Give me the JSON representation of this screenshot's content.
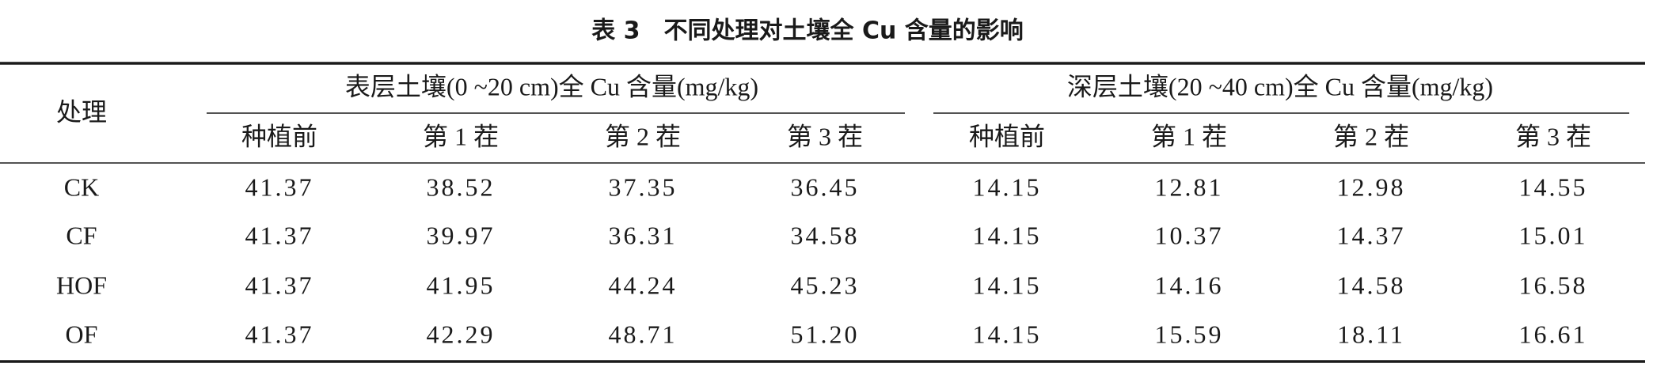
{
  "title": "表 3　不同处理对土壤全 Cu 含量的影响",
  "table": {
    "row_header": "处理",
    "groups": [
      "表层土壤(0 ~20 cm)全 Cu 含量(mg/kg)",
      "深层土壤(20 ~40 cm)全 Cu 含量(mg/kg)"
    ],
    "columns": [
      "种植前",
      "第 1 茬",
      "第 2 茬",
      "第 3 茬",
      "种植前",
      "第 1 茬",
      "第 2 茬",
      "第 3 茬"
    ],
    "rows": [
      [
        "CK",
        "41.37",
        "38.52",
        "37.35",
        "36.45",
        "14.15",
        "12.81",
        "12.98",
        "14.55"
      ],
      [
        "CF",
        "41.37",
        "39.97",
        "36.31",
        "34.58",
        "14.15",
        "10.37",
        "14.37",
        "15.01"
      ],
      [
        "HOF",
        "41.37",
        "41.95",
        "44.24",
        "45.23",
        "14.15",
        "14.16",
        "14.58",
        "16.58"
      ],
      [
        "OF",
        "41.37",
        "42.29",
        "48.71",
        "51.20",
        "14.15",
        "15.59",
        "18.11",
        "16.61"
      ]
    ]
  }
}
